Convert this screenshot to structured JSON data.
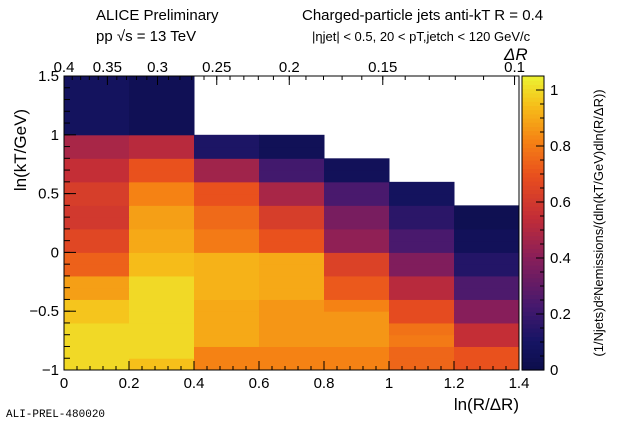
{
  "header": {
    "left_line1": "ALICE Preliminary",
    "left_line2": "pp √s = 13 TeV",
    "right_line1": "Charged-particle jets anti-kT R = 0.4",
    "right_line2": "|ηjet| < 0.5, 20 < pT,jetch < 120 GeV/c"
  },
  "footer_id": "ALI-PREL-480020",
  "colors": {
    "palette": "kBird-like (dark navy → purple → red → orange → yellow)",
    "empty_cell": "#ffffff"
  },
  "chart_data": {
    "type": "heatmap",
    "xlabel": "ln(R/ΔR)",
    "ylabel": "ln(kT/GeV)",
    "top_axis_label": "ΔR",
    "zlabel": "(1/Njets)d²Nemissions/(dln(kT/GeV)dln(R/ΔR))",
    "xlim": [
      0,
      1.4
    ],
    "ylim": [
      -1,
      1.5
    ],
    "zlim": [
      0,
      1.05
    ],
    "x_ticks": [
      0,
      0.2,
      0.4,
      0.6,
      0.8,
      1,
      1.2,
      1.4
    ],
    "x_tick_labels": [
      "0",
      "0.2",
      "0.4",
      "0.6",
      "0.8",
      "1",
      "1.2",
      "1.4"
    ],
    "y_ticks": [
      -1,
      -0.5,
      0,
      0.5,
      1,
      1.5
    ],
    "y_tick_labels": [
      "−1",
      "−0.5",
      "0",
      "0.5",
      "1",
      "1.5"
    ],
    "z_ticks": [
      0,
      0.2,
      0.4,
      0.6,
      0.8,
      1
    ],
    "z_tick_labels": [
      "0",
      "0.2",
      "0.4",
      "0.6",
      "0.8",
      "1"
    ],
    "top_ticks": [
      0.4,
      0.35,
      0.3,
      0.25,
      0.2,
      0.15,
      0.1
    ],
    "top_tick_labels": [
      "0.4",
      "0.35",
      "0.3",
      "0.25",
      "0.2",
      "0.15",
      "0.1"
    ],
    "x_bins": [
      0,
      0.2,
      0.4,
      0.6,
      0.8,
      1.0,
      1.2,
      1.4
    ],
    "y_bins": [
      -1.0,
      -0.9,
      -0.8,
      -0.7,
      -0.6,
      -0.5,
      -0.4,
      -0.3,
      -0.2,
      -0.1,
      0.0,
      0.1,
      0.2,
      0.3,
      0.4,
      0.5,
      0.6,
      0.7,
      0.8,
      0.9,
      1.0,
      1.5
    ],
    "z_rows_bottom_to_top": [
      [
        1.0,
        0.95,
        0.82,
        0.82,
        0.82,
        0.75,
        0.7
      ],
      [
        1.0,
        1.0,
        0.82,
        0.82,
        0.82,
        0.75,
        0.7
      ],
      [
        1.0,
        1.0,
        0.9,
        0.86,
        0.86,
        0.8,
        0.55
      ],
      [
        1.0,
        1.0,
        0.9,
        0.86,
        0.86,
        0.78,
        0.55
      ],
      [
        0.96,
        1.0,
        0.9,
        0.86,
        0.86,
        0.68,
        0.4
      ],
      [
        0.96,
        1.0,
        0.9,
        0.86,
        0.82,
        0.68,
        0.4
      ],
      [
        0.88,
        1.0,
        0.92,
        0.9,
        0.72,
        0.52,
        0.25
      ],
      [
        0.88,
        1.0,
        0.92,
        0.9,
        0.72,
        0.52,
        0.25
      ],
      [
        0.74,
        0.94,
        0.92,
        0.9,
        0.64,
        0.38,
        0.14
      ],
      [
        0.74,
        0.94,
        0.92,
        0.9,
        0.64,
        0.38,
        0.14
      ],
      [
        0.66,
        0.9,
        0.8,
        0.7,
        0.42,
        0.24,
        0.06
      ],
      [
        0.66,
        0.9,
        0.8,
        0.7,
        0.42,
        0.24,
        0.06
      ],
      [
        0.6,
        0.88,
        0.76,
        0.62,
        0.36,
        0.16,
        0.03
      ],
      [
        0.6,
        0.88,
        0.76,
        0.62,
        0.36,
        0.16,
        0.03
      ],
      [
        0.62,
        0.82,
        0.7,
        0.48,
        0.24,
        0.08,
        null
      ],
      [
        0.62,
        0.82,
        0.7,
        0.48,
        0.24,
        0.08,
        null
      ],
      [
        0.55,
        0.7,
        0.46,
        0.22,
        0.06,
        null,
        null
      ],
      [
        0.55,
        0.7,
        0.46,
        0.22,
        0.06,
        null,
        null
      ],
      [
        0.48,
        0.52,
        0.12,
        0.05,
        null,
        null,
        null
      ],
      [
        0.48,
        0.52,
        0.12,
        0.05,
        null,
        null,
        null
      ],
      [
        0.08,
        0.04,
        null,
        null,
        null,
        null,
        null
      ]
    ]
  }
}
